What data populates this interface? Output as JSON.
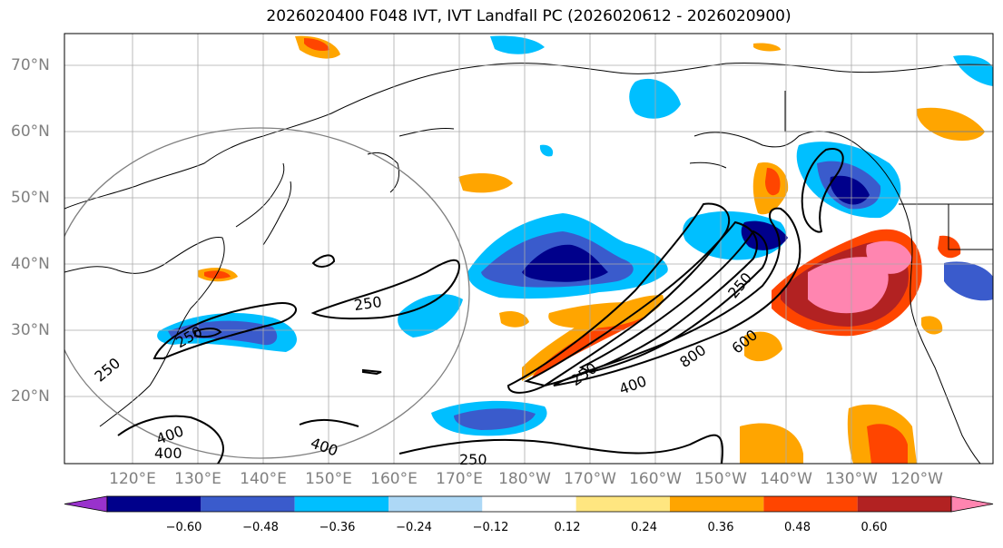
{
  "title": "2026020400 F048 IVT, IVT Landfall PC (2026020612 - 2026020900)",
  "lat_labels": [
    "70°N",
    "60°N",
    "50°N",
    "40°N",
    "30°N",
    "20°N"
  ],
  "lon_labels": [
    "120°E",
    "130°E",
    "140°E",
    "150°E",
    "160°E",
    "170°E",
    "180°W",
    "170°W",
    "160°W",
    "150°W",
    "140°W",
    "130°W",
    "120°W"
  ],
  "contour_labels": [
    "250",
    "250",
    "250",
    "250",
    "250",
    "400",
    "400",
    "600",
    "800",
    "400",
    "250",
    "400"
  ],
  "colorbar": {
    "ticks": [
      "−0.60",
      "−0.48",
      "−0.36",
      "−0.24",
      "−0.12",
      "0.12",
      "0.24",
      "0.36",
      "0.48",
      "0.60"
    ],
    "colors": [
      "#9932cc",
      "#00008b",
      "#3a5bcc",
      "#00bfff",
      "#add8f6",
      "#ffffff",
      "#ffe680",
      "#ffa500",
      "#ff4500",
      "#b22222",
      "#ff85b0"
    ]
  }
}
